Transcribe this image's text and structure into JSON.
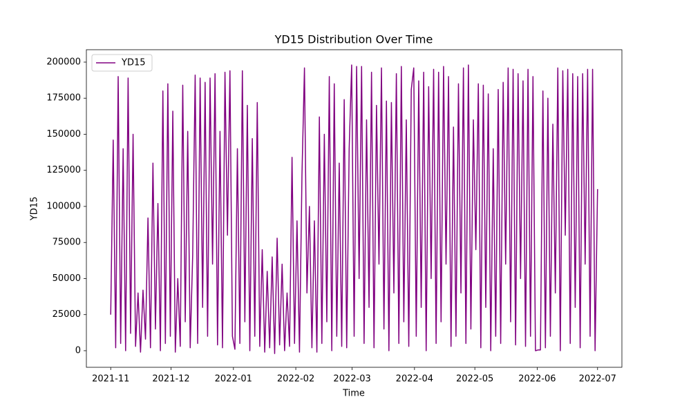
{
  "chart_data": {
    "type": "line",
    "title": "YD15 Distribution Over Time",
    "xlabel": "Time",
    "ylabel": "YD15",
    "xticks": [
      "2021-11",
      "2021-12",
      "2022-01",
      "2022-02",
      "2022-03",
      "2022-04",
      "2022-05",
      "2022-06",
      "2022-07"
    ],
    "ylim": [
      -11500,
      208600
    ],
    "yticks": [
      0,
      25000,
      50000,
      75000,
      100000,
      125000,
      150000,
      175000,
      200000
    ],
    "legend": "upper left",
    "series": [
      {
        "name": "YD15",
        "color": "#800080",
        "values": [
          25000,
          146000,
          2000,
          190000,
          5000,
          140000,
          0,
          189000,
          12000,
          150000,
          3000,
          40000,
          -1000,
          42000,
          8000,
          92000,
          2000,
          130000,
          15000,
          102000,
          0,
          180000,
          5000,
          185000,
          10000,
          166000,
          -1000,
          50000,
          3000,
          184000,
          20000,
          152000,
          2000,
          66000,
          191000,
          5000,
          189000,
          30000,
          186000,
          10000,
          189000,
          60000,
          192000,
          4000,
          152000,
          2000,
          193000,
          80000,
          194000,
          10000,
          1000,
          140000,
          5000,
          194000,
          20000,
          170000,
          0,
          147000,
          10000,
          172000,
          3000,
          70000,
          -1000,
          55000,
          2000,
          65000,
          -2000,
          78000,
          4000,
          60000,
          0,
          40000,
          3000,
          134000,
          5000,
          90000,
          -1000,
          122000,
          196000,
          40000,
          100000,
          2000,
          90000,
          -1000,
          162000,
          5000,
          150000,
          20000,
          190000,
          0,
          185000,
          10000,
          130000,
          3000,
          174000,
          2000,
          140000,
          198000,
          10000,
          197000,
          50000,
          197000,
          5000,
          160000,
          30000,
          193000,
          2000,
          170000,
          60000,
          196000,
          15000,
          173000,
          0,
          172000,
          40000,
          192000,
          5000,
          197000,
          20000,
          160000,
          3000,
          181000,
          196000,
          10000,
          187000,
          30000,
          193000,
          0,
          183000,
          50000,
          195000,
          5000,
          193000,
          20000,
          197000,
          60000,
          190000,
          3000,
          155000,
          10000,
          185000,
          40000,
          196000,
          5000,
          198000,
          15000,
          160000,
          70000,
          185000,
          2000,
          184000,
          30000,
          178000,
          0,
          140000,
          10000,
          181000,
          5000,
          186000,
          60000,
          196000,
          20000,
          195000,
          4000,
          192000,
          50000,
          187000,
          3000,
          195000,
          10000,
          190000,
          0,
          500,
          500,
          180000,
          2000,
          175000,
          10000,
          157000,
          40000,
          196000,
          0,
          194000,
          80000,
          195000,
          5000,
          192000,
          30000,
          190000,
          2000,
          192000,
          60000,
          195000,
          10000,
          195000,
          0,
          112000
        ]
      }
    ]
  }
}
